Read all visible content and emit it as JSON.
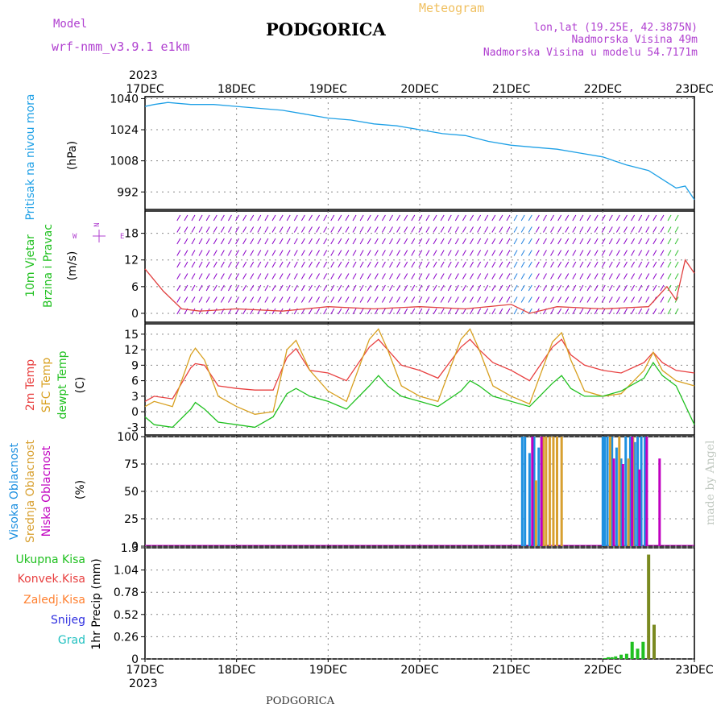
{
  "header": {
    "model_label": "Model",
    "model_name": "wrf-nmm_v3.9.1 e1km",
    "station": "PODGORICA",
    "product": "Meteogram",
    "lonlat": "lon,lat (19.25E, 42.3875N)",
    "elevation": "Nadmorska Visina 49m",
    "model_elevation": "Nadmorska Visina u modelu 54.7171m",
    "credit": "made by Angel",
    "footer_station": "PODGORICA"
  },
  "colors": {
    "pressure": "#1ea0e6",
    "wind_barb": "#8a00c8",
    "wind_speed": "#e04040",
    "temp2m": "#e84040",
    "sfc_temp": "#d8a020",
    "dewpt": "#20c020",
    "cloud_high": "#1e90e0",
    "cloud_mid": "#d8a030",
    "cloud_low": "#c000c0",
    "precip_total": "#20c020",
    "precip_conv": "#e84040",
    "precip_frz": "#ff8030",
    "precip_snow": "#3030e0",
    "precip_hail": "#20c0c0",
    "precip_bar": "#7a8a20"
  },
  "chart_data": [
    {
      "type": "line",
      "panel": "pressure",
      "title": "Pritisak na nivou mora",
      "ylabel": "(hPa)",
      "yticks": [
        1040,
        1024,
        1008,
        992
      ],
      "ylim": [
        983,
        1041
      ],
      "x_ticks": [
        "17DEC",
        "18DEC",
        "19DEC",
        "20DEC",
        "21DEC",
        "22DEC",
        "23DEC"
      ],
      "year": "2023",
      "series": [
        {
          "x": [
            0,
            0.1,
            0.25,
            0.5,
            0.75,
            1.0,
            1.25,
            1.5,
            1.75,
            2.0,
            2.25,
            2.5,
            2.75,
            3.0,
            3.25,
            3.5,
            3.75,
            4.0,
            4.25,
            4.5,
            4.75,
            5.0,
            5.25,
            5.5,
            5.7,
            5.8,
            5.9,
            6.0
          ],
          "y": [
            1036,
            1037,
            1038,
            1037,
            1037,
            1036,
            1035,
            1034,
            1032,
            1030,
            1029,
            1027,
            1026,
            1024,
            1022,
            1021,
            1018,
            1016,
            1015,
            1014,
            1012,
            1010,
            1006,
            1003,
            997,
            994,
            995,
            988
          ]
        }
      ]
    },
    {
      "type": "line",
      "panel": "wind",
      "title": "10m Vjetar",
      "subtitle": "Brzina i Pravac",
      "ylabel": "(m/s)",
      "compass": [
        "N",
        "W",
        "E"
      ],
      "yticks": [
        0,
        6,
        12,
        18
      ],
      "ylim": [
        -2,
        23
      ],
      "series": [
        {
          "x": [
            0,
            0.2,
            0.4,
            0.6,
            1.0,
            1.5,
            2.0,
            2.5,
            3.0,
            3.5,
            4.0,
            4.2,
            4.5,
            5.0,
            5.5,
            5.7,
            5.8,
            5.9,
            6.0
          ],
          "y": [
            10,
            5,
            1,
            0.5,
            1,
            0.5,
            1.5,
            1,
            1.5,
            1,
            2,
            0,
            1.5,
            1,
            1.5,
            6,
            3,
            12,
            9
          ]
        }
      ]
    },
    {
      "type": "line",
      "panel": "temperature",
      "titles": [
        "2m Temp",
        "SFC Temp",
        "dewpt Temp"
      ],
      "ylabel": "(C)",
      "yticks": [
        -3,
        0,
        3,
        6,
        9,
        12,
        15
      ],
      "ylim": [
        -4.5,
        17
      ],
      "series": [
        {
          "name": "2m Temp",
          "x": [
            0,
            0.1,
            0.3,
            0.5,
            0.55,
            0.65,
            0.8,
            1.0,
            1.2,
            1.4,
            1.55,
            1.65,
            1.8,
            2.0,
            2.2,
            2.45,
            2.55,
            2.65,
            2.8,
            3.0,
            3.2,
            3.45,
            3.55,
            3.65,
            3.8,
            4.0,
            4.2,
            4.45,
            4.55,
            4.65,
            4.8,
            5.0,
            5.2,
            5.45,
            5.55,
            5.65,
            5.8,
            6.0
          ],
          "y": [
            2,
            3,
            2.5,
            8.5,
            9.3,
            9,
            5,
            4.5,
            4.2,
            4.2,
            10.5,
            12.2,
            8,
            7.5,
            6,
            12.5,
            14,
            12,
            9,
            8,
            6.5,
            12.5,
            14,
            12,
            9.5,
            8,
            6,
            12.5,
            14,
            11,
            9,
            8,
            7.5,
            9.5,
            11.5,
            9.5,
            8,
            7.5
          ]
        },
        {
          "name": "SFC Temp",
          "x": [
            0,
            0.1,
            0.3,
            0.5,
            0.55,
            0.65,
            0.8,
            1.0,
            1.2,
            1.4,
            1.55,
            1.65,
            1.8,
            2.0,
            2.2,
            2.45,
            2.55,
            2.65,
            2.8,
            3.0,
            3.2,
            3.45,
            3.55,
            3.65,
            3.8,
            4.0,
            4.2,
            4.45,
            4.55,
            4.65,
            4.8,
            5.0,
            5.2,
            5.45,
            5.55,
            5.65,
            5.8,
            6.0
          ],
          "y": [
            1,
            2,
            1,
            11,
            12.3,
            10,
            3,
            1,
            -0.5,
            0,
            12,
            13.8,
            8,
            4,
            2,
            14,
            16,
            12,
            5,
            3,
            2,
            14,
            16,
            12,
            5,
            3,
            1.5,
            13.5,
            15.3,
            10,
            4,
            3,
            3.5,
            8,
            11.5,
            8,
            6,
            5
          ]
        },
        {
          "name": "dewpt Temp",
          "x": [
            0,
            0.1,
            0.3,
            0.5,
            0.55,
            0.65,
            0.8,
            1.0,
            1.2,
            1.4,
            1.55,
            1.65,
            1.8,
            2.0,
            2.2,
            2.45,
            2.55,
            2.65,
            2.8,
            3.0,
            3.2,
            3.45,
            3.55,
            3.65,
            3.8,
            4.0,
            4.2,
            4.45,
            4.55,
            4.65,
            4.8,
            5.0,
            5.2,
            5.45,
            5.55,
            5.65,
            5.8,
            6.0
          ],
          "y": [
            -1,
            -2.5,
            -3,
            0.5,
            1.8,
            0.5,
            -2,
            -2.5,
            -3,
            -1,
            3.5,
            4.5,
            3,
            2,
            0.5,
            5,
            7,
            5,
            3,
            2,
            1,
            4,
            6,
            5,
            3,
            2,
            1,
            5.5,
            7,
            4.5,
            3,
            3,
            4,
            6.5,
            9.5,
            7,
            5,
            -2.5
          ]
        }
      ]
    },
    {
      "type": "bar",
      "panel": "cloud",
      "titles": [
        "Visoka Oblacnost",
        "Srednja Oblacnost",
        "Niska Oblacnost"
      ],
      "ylabel": "(%)",
      "yticks": [
        0,
        25,
        50,
        75,
        100
      ],
      "ylim": [
        0,
        100
      ],
      "series": [
        {
          "name": "Visoka Oblacnost",
          "x": [
            4.12,
            4.15,
            4.2,
            4.25,
            4.3,
            5.0,
            5.02,
            5.05,
            5.1,
            5.15,
            5.2,
            5.25,
            5.3,
            5.35,
            5.38,
            5.42,
            5.46
          ],
          "y": [
            100,
            100,
            85,
            100,
            90,
            100,
            100,
            100,
            100,
            90,
            80,
            100,
            100,
            95,
            100,
            100,
            100
          ]
        },
        {
          "name": "Srednja Oblacnost",
          "x": [
            4.27,
            4.35,
            4.38,
            4.42,
            4.46,
            4.5,
            4.55,
            5.08,
            5.18,
            5.28,
            5.33
          ],
          "y": [
            60,
            100,
            100,
            100,
            100,
            100,
            100,
            100,
            100,
            80,
            100
          ]
        },
        {
          "name": "Niska Oblacnost",
          "x": [
            4.23,
            4.33,
            5.12,
            5.22,
            5.32,
            5.4,
            5.48,
            5.62
          ],
          "y": [
            100,
            100,
            80,
            75,
            100,
            70,
            100,
            80
          ]
        }
      ]
    },
    {
      "type": "bar",
      "panel": "precip",
      "titles": [
        "Ukupna Kisa",
        "Konvek.Kisa",
        "Zaledj.Kisa",
        "Snijeg",
        "Grad"
      ],
      "ylabel": "1hr Precip (mm)",
      "yticks": [
        0,
        0.26,
        0.52,
        0.78,
        1.04,
        1.3
      ],
      "ylim": [
        0,
        1.3
      ],
      "series": [
        {
          "name": "Ukupna Kisa",
          "x": [
            5.02,
            5.06,
            5.1,
            5.14,
            5.2,
            5.26,
            5.32,
            5.38,
            5.44,
            5.5,
            5.56
          ],
          "y": [
            0.01,
            0.02,
            0.02,
            0.03,
            0.05,
            0.06,
            0.2,
            0.12,
            0.2,
            1.22,
            0.4
          ]
        }
      ]
    }
  ]
}
